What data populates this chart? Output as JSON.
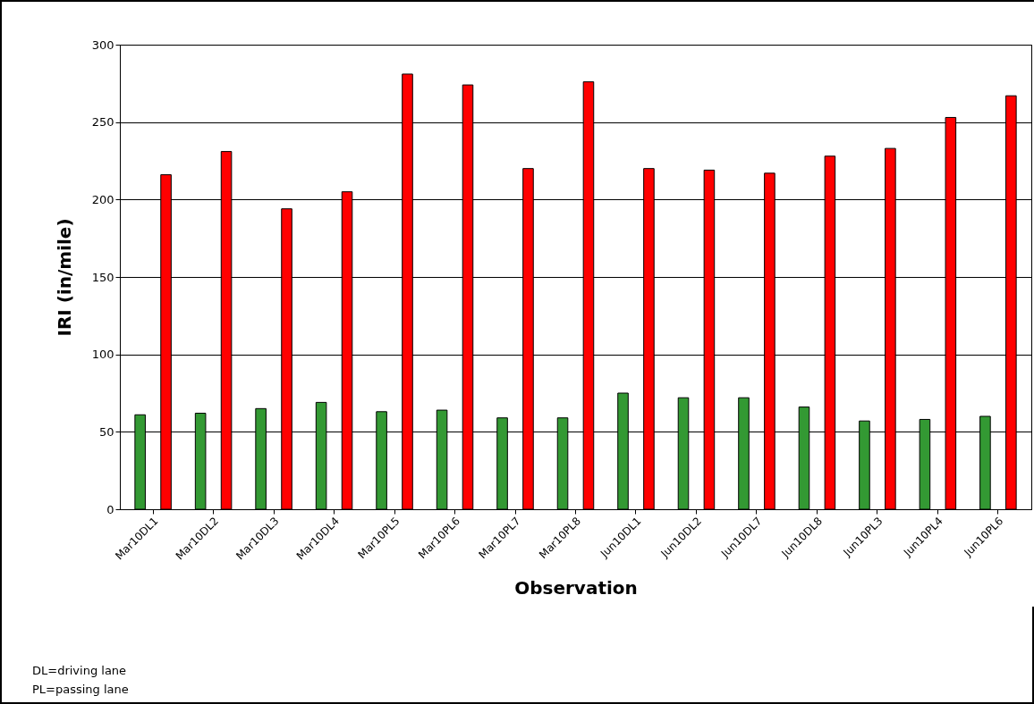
{
  "chart_data": {
    "type": "bar",
    "xlabel": "Observation",
    "ylabel": "IRI (in/mile)",
    "categories": [
      "Mar10DL1",
      "Mar10DL2",
      "Mar10DL3",
      "Mar10DL4",
      "Mar10PL5",
      "Mar10PL6",
      "Mar10PL7",
      "Mar10PL8",
      "Jun10DL1",
      "Jun10DL2",
      "Jun10DL7",
      "Jun10DL8",
      "Jun10PL3",
      "Jun10PL4",
      "Jun10PL6"
    ],
    "series": [
      {
        "color": "#339933",
        "values": [
          61,
          62,
          65,
          69,
          63,
          64,
          59,
          59,
          75,
          72,
          72,
          66,
          57,
          58,
          60
        ]
      },
      {
        "color": "#ff0000",
        "values": [
          216,
          231,
          194,
          205,
          281,
          274,
          220,
          276,
          220,
          219,
          217,
          228,
          233,
          253,
          267
        ]
      }
    ],
    "ylim": [
      0,
      300
    ],
    "yticks": [
      0,
      50,
      100,
      150,
      200,
      250,
      300
    ],
    "grid": "y",
    "annotations": [
      "DL=driving lane",
      "PL=passing lane"
    ]
  }
}
